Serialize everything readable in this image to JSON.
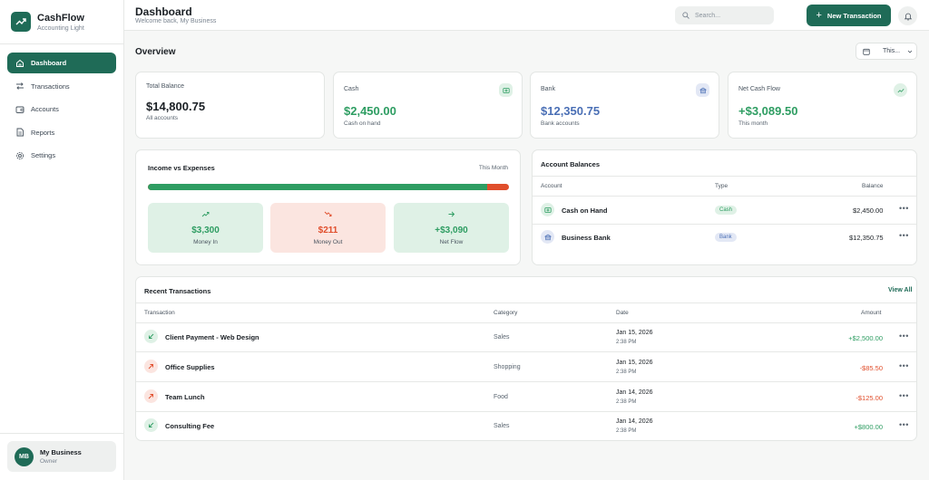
{
  "brand": {
    "name": "CashFlow",
    "subtitle": "Accounting Light"
  },
  "nav": [
    {
      "label": "Dashboard",
      "icon": "home-icon",
      "active": true
    },
    {
      "label": "Transactions",
      "icon": "arrows-icon"
    },
    {
      "label": "Accounts",
      "icon": "wallet-icon"
    },
    {
      "label": "Reports",
      "icon": "document-icon"
    },
    {
      "label": "Settings",
      "icon": "gear-icon"
    }
  ],
  "user": {
    "initials": "MB",
    "name": "My Business",
    "role": "Owner"
  },
  "header": {
    "title": "Dashboard",
    "subtitle": "Welcome back, My Business",
    "search_placeholder": "Search...",
    "new_button": "New Transaction"
  },
  "overview": {
    "title": "Overview",
    "period": "This..."
  },
  "stats": {
    "total": {
      "label": "Total Balance",
      "value": "$14,800.75",
      "sub": "All accounts"
    },
    "cash": {
      "label": "Cash",
      "value": "$2,450.00",
      "sub": "Cash on hand",
      "color": "#2e9d62"
    },
    "bank": {
      "label": "Bank",
      "value": "$12,350.75",
      "sub": "Bank accounts",
      "color": "#4a6fb5"
    },
    "netflow": {
      "label": "Net Cash Flow",
      "value": "+$3,089.50",
      "sub": "This month",
      "color": "#2e9d62"
    }
  },
  "income": {
    "title": "Income vs Expenses",
    "period": "This Month",
    "income_share": 0.94,
    "money_in": {
      "value": "$3,300",
      "label": "Money In"
    },
    "money_out": {
      "value": "$211",
      "label": "Money Out"
    },
    "net_flow": {
      "value": "+$3,090",
      "label": "Net Flow"
    }
  },
  "accounts": {
    "title": "Account Balances",
    "headers": {
      "account": "Account",
      "type": "Type",
      "balance": "Balance"
    },
    "rows": [
      {
        "name": "Cash on Hand",
        "type": "Cash",
        "balance": "$2,450.00"
      },
      {
        "name": "Business Bank",
        "type": "Bank",
        "balance": "$12,350.75"
      }
    ]
  },
  "transactions": {
    "title": "Recent Transactions",
    "view_all": "View All",
    "headers": {
      "transaction": "Transaction",
      "category": "Category",
      "date": "Date",
      "amount": "Amount"
    },
    "rows": [
      {
        "name": "Client Payment - Web Design",
        "category": "Sales",
        "date": "Jan 15, 2026",
        "time": "2:38 PM",
        "amount": "+$2,500.00",
        "kind": "income"
      },
      {
        "name": "Office Supplies",
        "category": "Shopping",
        "date": "Jan 15, 2026",
        "time": "2:38 PM",
        "amount": "-$85.50",
        "kind": "expense"
      },
      {
        "name": "Team Lunch",
        "category": "Food",
        "date": "Jan 14, 2026",
        "time": "2:38 PM",
        "amount": "-$125.00",
        "kind": "expense"
      },
      {
        "name": "Consulting Fee",
        "category": "Sales",
        "date": "Jan 14, 2026",
        "time": "2:38 PM",
        "amount": "+$800.00",
        "kind": "income"
      }
    ]
  },
  "colors": {
    "primary": "#1f6b57",
    "income": "#2e9d62",
    "expense": "#e04e2c",
    "bank": "#4a6fb5"
  }
}
